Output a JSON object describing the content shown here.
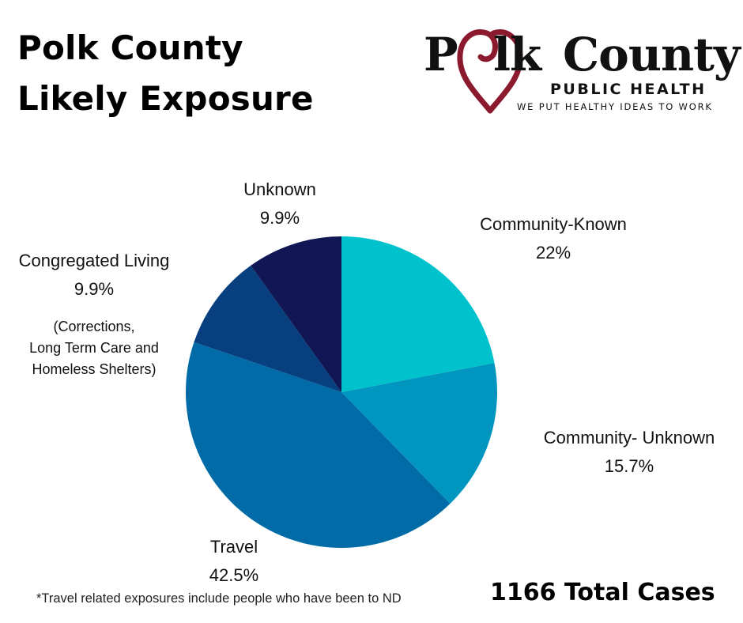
{
  "title": {
    "line1": "Polk County",
    "line2": "Likely Exposure"
  },
  "logo": {
    "word_p": "P",
    "word_lk": "lk",
    "word_county": "County",
    "subtitle": "PUBLIC HEALTH",
    "tagline": "WE PUT HEALTHY IDEAS TO WORK",
    "heart_color": "#8B1A2E"
  },
  "chart_data": {
    "type": "pie",
    "title": "Polk County Likely Exposure",
    "categories": [
      "Community-Known",
      "Community- Unknown",
      "Travel",
      "Congregated Living",
      "Unknown"
    ],
    "values": [
      22,
      15.7,
      42.5,
      9.9,
      9.9
    ],
    "value_labels": [
      "22%",
      "15.7%",
      "42.5%",
      "9.9%",
      "9.9%"
    ],
    "colors": [
      "#00C2CC",
      "#0096BF",
      "#006BA6",
      "#073F7F",
      "#111755"
    ],
    "start_angle_deg": 0,
    "direction": "clockwise",
    "legend": "none"
  },
  "note": {
    "line1": "(Corrections,",
    "line2": "Long Term Care and",
    "line3": "Homeless Shelters)"
  },
  "footnote": "*Travel related exposures include people who have been to ND",
  "total": "1166 Total Cases"
}
